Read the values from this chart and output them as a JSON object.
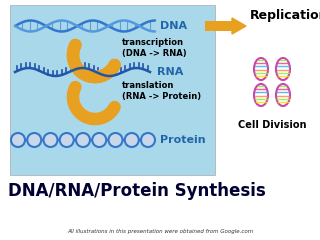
{
  "title": "DNA/RNA/Protein Synthesis",
  "subtitle": "All illustrations in this presentation were obtained from Google.com",
  "replication_label": "Replication",
  "cell_division_label": "Cell Division",
  "dna_label": "DNA",
  "rna_label": "RNA",
  "protein_label": "Protein",
  "transcription_label": "transcription\n(DNA -> RNA)",
  "translation_label": "translation\n(RNA -> Protein)",
  "bg_box_color": "#a8d8ea",
  "bg_color": "#ffffff",
  "dna_color1": "#3377cc",
  "dna_color2": "#5599dd",
  "rna_color": "#2255aa",
  "protein_bg": "#c8d8e8",
  "arrow_color": "#e8a020",
  "cell_div_color": "#cc44aa",
  "title_color": "#000033",
  "label_color": "#2266aa",
  "subtitle_color": "#333333"
}
